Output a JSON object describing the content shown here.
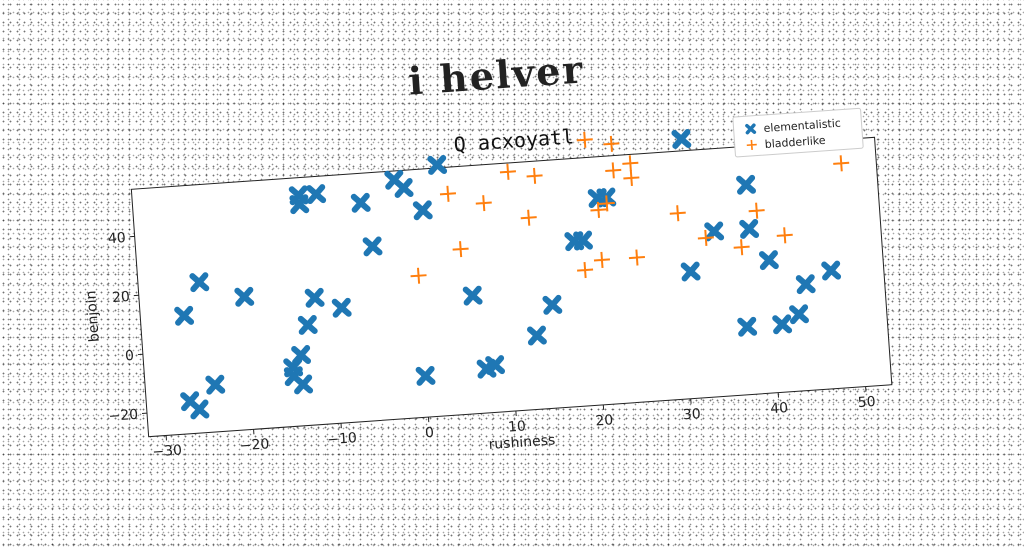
{
  "figure": {
    "supertitle": "i helver"
  },
  "chart_data": {
    "type": "scatter",
    "title": "Q acxoyatl",
    "xlabel": "rushiness",
    "ylabel": "benjoin",
    "xlim": [
      -32,
      53
    ],
    "ylim": [
      -28,
      56
    ],
    "xticks": [
      -30,
      -20,
      -10,
      0,
      10,
      20,
      30,
      40,
      50
    ],
    "yticks": [
      -20,
      0,
      20,
      40
    ],
    "grid": false,
    "legend_position": "top-right",
    "series": [
      {
        "name": "elementalistic",
        "marker": "X",
        "color": "#1f77b4",
        "points": [
          [
            -27,
            -17
          ],
          [
            -26,
            -20
          ],
          [
            -24,
            -12
          ],
          [
            -27,
            12
          ],
          [
            -25,
            23
          ],
          [
            -20,
            17
          ],
          [
            -14,
            -14
          ],
          [
            -15,
            -11
          ],
          [
            -15,
            -8
          ],
          [
            -14,
            -4
          ],
          [
            -13,
            6
          ],
          [
            -12,
            15
          ],
          [
            -9,
            11
          ],
          [
            -13,
            50
          ],
          [
            -13,
            47
          ],
          [
            -11,
            50
          ],
          [
            -6,
            46
          ],
          [
            -5,
            31
          ],
          [
            -2,
            53
          ],
          [
            -1,
            50
          ],
          [
            1,
            42
          ],
          [
            3,
            57
          ],
          [
            0,
            -14
          ],
          [
            6,
            12
          ],
          [
            7,
            -13
          ],
          [
            8,
            -12
          ],
          [
            15,
            7
          ],
          [
            13,
            -3
          ],
          [
            18,
            28
          ],
          [
            19,
            28
          ],
          [
            21,
            42
          ],
          [
            22,
            42
          ],
          [
            31,
            15
          ],
          [
            31,
            60
          ],
          [
            34,
            28
          ],
          [
            37,
            -5
          ],
          [
            38,
            28
          ],
          [
            38,
            43
          ],
          [
            40,
            17
          ],
          [
            41,
            -5
          ],
          [
            43,
            -2
          ],
          [
            44,
            8
          ],
          [
            47,
            12
          ],
          [
            42,
            61
          ]
        ]
      },
      {
        "name": "bladderlike",
        "marker": "+",
        "color": "#ff7f0e",
        "points": [
          [
            20,
            62
          ],
          [
            23,
            60
          ],
          [
            23,
            51
          ],
          [
            25,
            53
          ],
          [
            25,
            48
          ],
          [
            4,
            47
          ],
          [
            11,
            53
          ],
          [
            14,
            51
          ],
          [
            8,
            43
          ],
          [
            13,
            37
          ],
          [
            5,
            28
          ],
          [
            0,
            20
          ],
          [
            19,
            18
          ],
          [
            21,
            21
          ],
          [
            25,
            21
          ],
          [
            21,
            38
          ],
          [
            22,
            40
          ],
          [
            30,
            35
          ],
          [
            33,
            26
          ],
          [
            37,
            22
          ],
          [
            39,
            34
          ],
          [
            42,
            25
          ],
          [
            49,
            63
          ],
          [
            49,
            48
          ]
        ]
      }
    ]
  }
}
